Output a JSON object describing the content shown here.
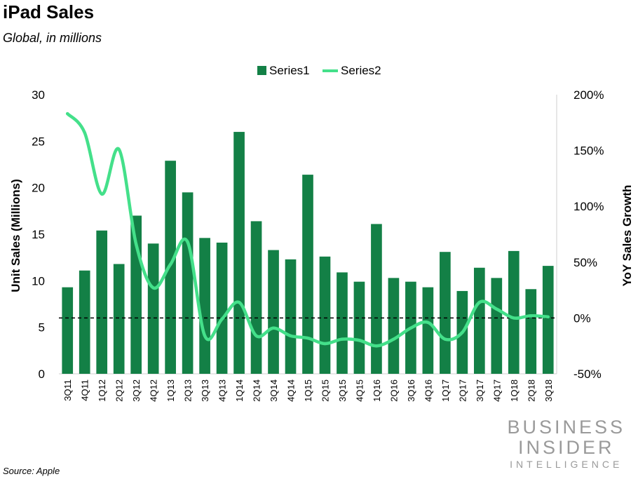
{
  "header": {
    "title": "iPad Sales",
    "subtitle": "Global, in millions"
  },
  "footer": {
    "source": "Source: Apple",
    "brand_line1": "BUSINESS",
    "brand_line2": "INSIDER",
    "brand_line3": "INTELLIGENCE"
  },
  "colors": {
    "bar": "#138046",
    "line": "#44e08a",
    "zero_line": "#000000",
    "axis_line": "#cfcfcf"
  },
  "chart_data": {
    "type": "bar",
    "categories": [
      "3Q11",
      "4Q11",
      "1Q12",
      "2Q12",
      "3Q12",
      "4Q12",
      "1Q13",
      "2Q13",
      "3Q13",
      "4Q13",
      "1Q14",
      "2Q14",
      "3Q14",
      "4Q14",
      "1Q15",
      "2Q15",
      "3Q15",
      "4Q15",
      "1Q16",
      "2Q16",
      "3Q16",
      "4Q16",
      "1Q17",
      "2Q17",
      "3Q17",
      "4Q17",
      "1Q18",
      "2Q18",
      "3Q18"
    ],
    "series": [
      {
        "name": "Series1",
        "type": "bar",
        "axis": "left",
        "values": [
          9.3,
          11.1,
          15.4,
          11.8,
          17.0,
          14.0,
          22.9,
          19.5,
          14.6,
          14.1,
          26.0,
          16.4,
          13.3,
          12.3,
          21.4,
          12.6,
          10.9,
          9.9,
          16.1,
          10.3,
          9.9,
          9.3,
          13.1,
          8.9,
          11.4,
          10.3,
          13.2,
          9.1,
          11.6
        ]
      },
      {
        "name": "Series2",
        "type": "line",
        "axis": "right",
        "values": [
          183,
          166,
          111,
          151,
          66,
          27,
          48,
          68,
          -16,
          -1,
          14,
          -16,
          -9,
          -16,
          -18,
          -23,
          -19,
          -20,
          -25,
          -19,
          -9,
          -4,
          -19,
          -13,
          14,
          8,
          0,
          2,
          1
        ]
      }
    ],
    "ylabel": "Unit Sales (Millions)",
    "y2label": "YoY Sales Growth",
    "ylim": [
      0,
      30
    ],
    "yticks": [
      "0",
      "5",
      "10",
      "15",
      "20",
      "25",
      "30"
    ],
    "y2lim": [
      -50,
      200
    ],
    "y2ticks": [
      "-50%",
      "0%",
      "50%",
      "100%",
      "150%",
      "200%"
    ],
    "reference_line": {
      "axis": "right",
      "value": 0,
      "style": "dashed"
    },
    "grid": false,
    "legend": "top-center"
  }
}
